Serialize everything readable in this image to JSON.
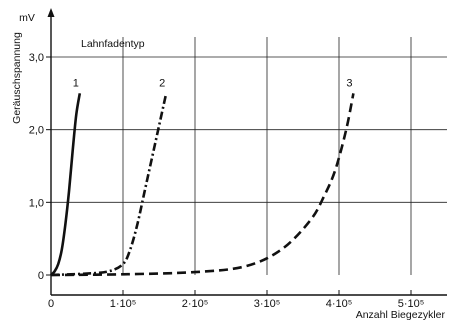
{
  "chart_data": {
    "type": "line",
    "unit_label": "mV",
    "ylabel": "Geräuschspannung",
    "xlabel": "Anzahl  Biegezykler",
    "legend_title": "Lahnfadentyp",
    "grid": true,
    "xlim": [
      0,
      550000
    ],
    "ylim": [
      0,
      3.0
    ],
    "x_ticks": [
      {
        "value": 0,
        "label": "0"
      },
      {
        "value": 100000,
        "label": "1·10⁵"
      },
      {
        "value": 200000,
        "label": "2·10⁵"
      },
      {
        "value": 300000,
        "label": "3·10⁵"
      },
      {
        "value": 400000,
        "label": "4·10⁵"
      },
      {
        "value": 500000,
        "label": "5·10⁵"
      }
    ],
    "y_ticks": [
      {
        "value": 0,
        "label": "0"
      },
      {
        "value": 1.0,
        "label": "1,0"
      },
      {
        "value": 2.0,
        "label": "2,0"
      },
      {
        "value": 3.0,
        "label": "3,0"
      }
    ],
    "series": [
      {
        "name": "1",
        "style": "solid",
        "x": [
          0,
          5000,
          10000,
          15000,
          20000,
          25000,
          30000,
          35000,
          40000
        ],
        "y": [
          0,
          0.05,
          0.15,
          0.35,
          0.7,
          1.15,
          1.7,
          2.2,
          2.5
        ]
      },
      {
        "name": "2",
        "style": "dashdot",
        "x": [
          0,
          50000,
          80000,
          100000,
          110000,
          120000,
          130000,
          140000,
          150000,
          160000
        ],
        "y": [
          0,
          0.02,
          0.05,
          0.15,
          0.35,
          0.7,
          1.15,
          1.6,
          2.05,
          2.5
        ]
      },
      {
        "name": "3",
        "style": "dashed",
        "x": [
          0,
          100000,
          200000,
          270000,
          320000,
          360000,
          380000,
          395000,
          410000,
          420000
        ],
        "y": [
          0,
          0.01,
          0.04,
          0.12,
          0.35,
          0.75,
          1.1,
          1.45,
          2.0,
          2.5
        ]
      }
    ]
  }
}
